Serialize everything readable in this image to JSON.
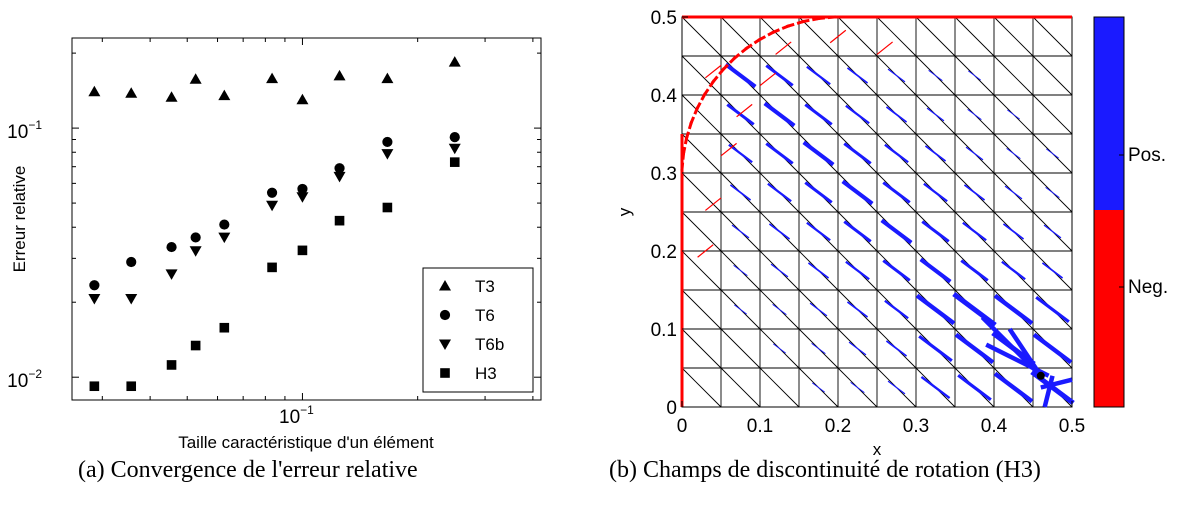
{
  "chart_data": [
    {
      "type": "scatter",
      "caption": "(a) Convergence de l'erreur relative",
      "xlabel": "Taille caractéristique d'un élément",
      "ylabel": "Erreur relative",
      "xscale": "log",
      "yscale": "log",
      "xlim": [
        0.025,
        0.42
      ],
      "ylim": [
        0.0081,
        0.23
      ],
      "xticks": [
        {
          "value": 0.1,
          "base": "10",
          "exp": "−1"
        }
      ],
      "yticks": [
        {
          "value": 0.01,
          "base": "10",
          "exp": "−2"
        },
        {
          "value": 0.1,
          "base": "10",
          "exp": "−1"
        }
      ],
      "legend_position": "bottom-right",
      "series": [
        {
          "name": "T3",
          "marker": "triangle-up",
          "x": [
            0.0286,
            0.0357,
            0.0455,
            0.0526,
            0.0625,
            0.0833,
            0.1,
            0.125,
            0.1667,
            0.25
          ],
          "y": [
            0.14,
            0.138,
            0.133,
            0.157,
            0.135,
            0.158,
            0.13,
            0.162,
            0.158,
            0.184
          ]
        },
        {
          "name": "T6",
          "marker": "circle",
          "x": [
            0.0286,
            0.0357,
            0.0455,
            0.0526,
            0.0625,
            0.0833,
            0.1,
            0.125,
            0.1667,
            0.25
          ],
          "y": [
            0.0234,
            0.029,
            0.0333,
            0.0364,
            0.041,
            0.055,
            0.057,
            0.069,
            0.088,
            0.092
          ]
        },
        {
          "name": "T6b",
          "marker": "triangle-down",
          "x": [
            0.0286,
            0.0357,
            0.0455,
            0.0526,
            0.0625,
            0.0833,
            0.1,
            0.125,
            0.1667,
            0.25
          ],
          "y": [
            0.0207,
            0.0207,
            0.026,
            0.0322,
            0.0365,
            0.049,
            0.053,
            0.064,
            0.079,
            0.083
          ]
        },
        {
          "name": "H3",
          "marker": "square",
          "x": [
            0.0286,
            0.0357,
            0.0455,
            0.0526,
            0.0625,
            0.0833,
            0.1,
            0.125,
            0.1667,
            0.25
          ],
          "y": [
            0.0092,
            0.0092,
            0.0112,
            0.0134,
            0.0158,
            0.0276,
            0.0323,
            0.0425,
            0.048,
            0.073
          ]
        }
      ]
    },
    {
      "type": "other",
      "caption": "(b) Champs de discontinuité de rotation (H3)",
      "xlabel": "x",
      "ylabel": "y",
      "xlim": [
        0,
        0.5
      ],
      "ylim": [
        0,
        0.5
      ],
      "xticks": [
        "0",
        "0.1",
        "0.2",
        "0.3",
        "0.4",
        "0.5"
      ],
      "yticks": [
        "0",
        "0.1",
        "0.2",
        "0.3",
        "0.4",
        "0.5"
      ],
      "mesh_divisions": 10,
      "colorbar": {
        "labels": [
          "Pos.",
          "Neg."
        ],
        "colors": {
          "Pos.": "#1a1aff",
          "Neg.": "#ff0000"
        }
      },
      "colors": {
        "positive": "#1a1aff",
        "negative": "#ff0000",
        "mesh": "#000000"
      }
    }
  ]
}
